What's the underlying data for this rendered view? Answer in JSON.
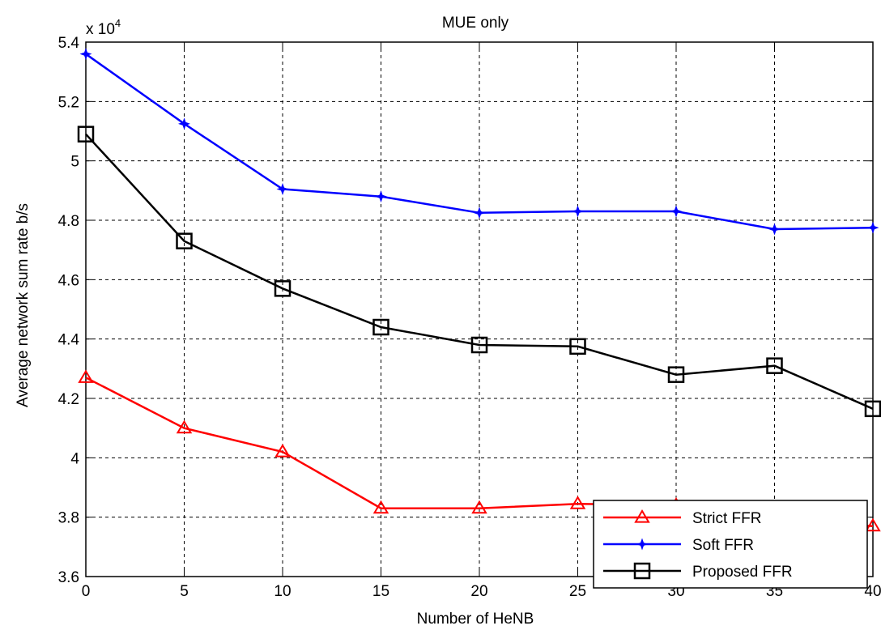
{
  "chart_data": {
    "type": "line",
    "title": "MUE only",
    "xlabel": "Number of HeNB",
    "ylabel": "Average network sum rate b/s",
    "y_multiplier": "x 10",
    "y_multiplier_exponent": "4",
    "x": [
      0,
      5,
      10,
      15,
      20,
      25,
      30,
      35,
      40
    ],
    "xlim": [
      0,
      40
    ],
    "ylim": [
      3.6,
      5.4
    ],
    "xticks": [
      "0",
      "5",
      "10",
      "15",
      "20",
      "25",
      "30",
      "35",
      "40"
    ],
    "yticks": [
      "3.6",
      "3.8",
      "4",
      "4.2",
      "4.4",
      "4.6",
      "4.8",
      "5",
      "5.2",
      "5.4"
    ],
    "grid": true,
    "legend_position": "bottom-right",
    "series": [
      {
        "name": "Strict FFR",
        "color": "#ff0000",
        "marker": "triangle",
        "values": [
          4.27,
          4.1,
          4.02,
          3.83,
          3.83,
          3.845,
          3.84,
          3.79,
          3.77
        ]
      },
      {
        "name": "Soft FFR",
        "color": "#0000ff",
        "marker": "star",
        "values": [
          5.36,
          5.125,
          4.905,
          4.88,
          4.825,
          4.83,
          4.83,
          4.77,
          4.775
        ]
      },
      {
        "name": "Proposed FFR",
        "color": "#000000",
        "marker": "square",
        "values": [
          5.09,
          4.73,
          4.57,
          4.44,
          4.38,
          4.375,
          4.28,
          4.31,
          4.165
        ]
      }
    ]
  }
}
